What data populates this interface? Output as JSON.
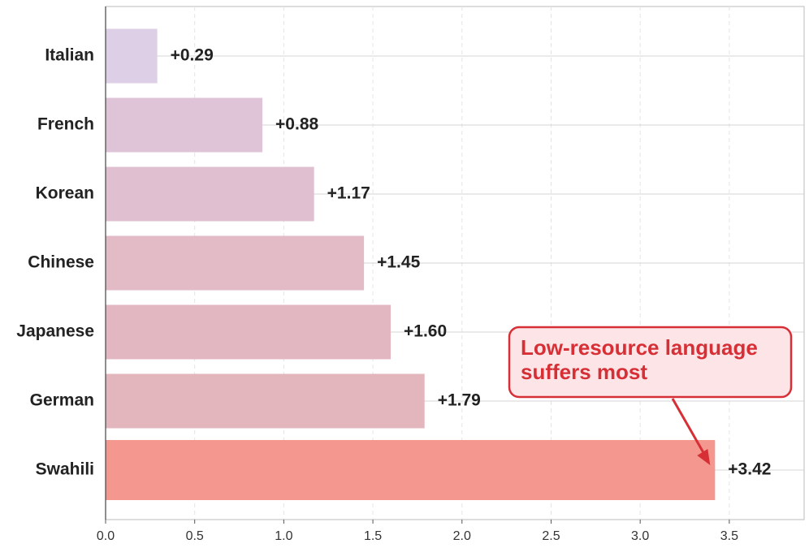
{
  "chart_data": {
    "type": "barh",
    "categories": [
      "Italian",
      "French",
      "Korean",
      "Chinese",
      "Japanese",
      "German",
      "Swahili"
    ],
    "values": [
      0.29,
      0.88,
      1.17,
      1.45,
      1.6,
      1.79,
      3.42
    ],
    "value_labels": [
      "+0.29",
      "+0.88",
      "+1.17",
      "+1.45",
      "+1.60",
      "+1.79",
      "+3.42"
    ],
    "colors": [
      "#dccfe6",
      "#dfc4d8",
      "#e0c0d0",
      "#e2bbc7",
      "#e3b7c1",
      "#e3b5bd",
      "#f4978e"
    ],
    "xlim": [
      0,
      3.92
    ],
    "xticks": [
      {
        "value": 0,
        "label": "0.0"
      },
      0.5,
      {
        "value": 1,
        "label": "1.0"
      },
      1.5,
      {
        "value": 2,
        "label": "2.0"
      },
      2.5,
      {
        "value": 3,
        "label": "3.0"
      },
      3.5
    ],
    "grid": true,
    "annotation": {
      "lines": [
        "Low-resource language",
        "suffers most"
      ],
      "color": "#d62f35",
      "fill": "#fde4e6"
    }
  }
}
